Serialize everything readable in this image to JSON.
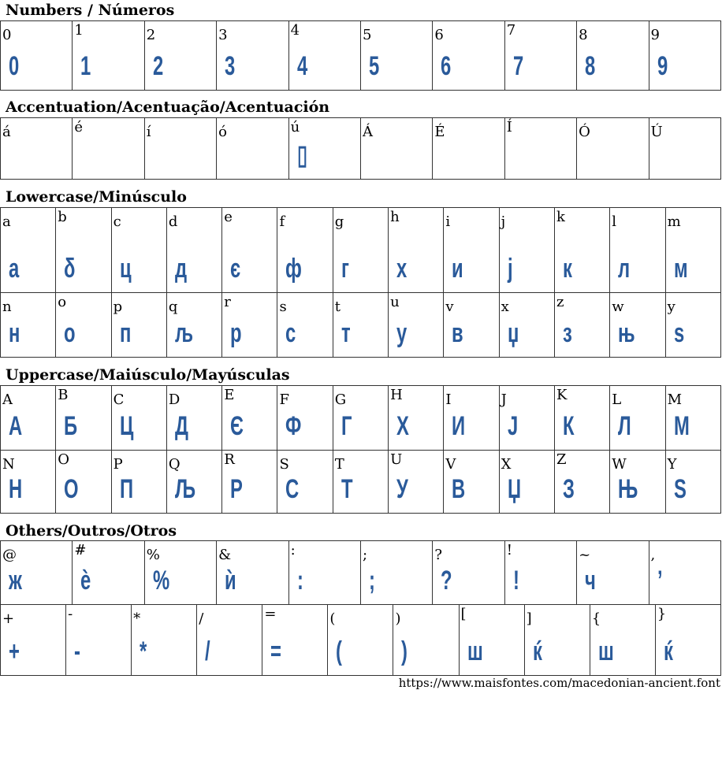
{
  "sections": [
    {
      "title": "Numbers / Números",
      "rows": [
        [
          [
            "0",
            "0"
          ],
          [
            "1",
            "1"
          ],
          [
            "2",
            "2"
          ],
          [
            "3",
            "3"
          ],
          [
            "4",
            "4"
          ],
          [
            "5",
            "5"
          ],
          [
            "6",
            "6"
          ],
          [
            "7",
            "7"
          ],
          [
            "8",
            "8"
          ],
          [
            "9",
            "9"
          ]
        ]
      ]
    },
    {
      "title": "Accentuation/Acentuação/Acentuación",
      "rows": [
        [
          [
            "á",
            ""
          ],
          [
            "é",
            ""
          ],
          [
            "í",
            ""
          ],
          [
            "ó",
            ""
          ],
          [
            "ú",
            "▯"
          ],
          [
            "Á",
            ""
          ],
          [
            "É",
            ""
          ],
          [
            "Í",
            ""
          ],
          [
            "Ó",
            ""
          ],
          [
            "Ú",
            ""
          ]
        ]
      ]
    },
    {
      "title": "Lowercase/Minúsculo",
      "rows": [
        [
          [
            "a",
            "а"
          ],
          [
            "b",
            "δ"
          ],
          [
            "c",
            "ц"
          ],
          [
            "d",
            "д"
          ],
          [
            "e",
            "є"
          ],
          [
            "f",
            "ф"
          ],
          [
            "g",
            "г"
          ],
          [
            "h",
            "х"
          ],
          [
            "i",
            "и"
          ],
          [
            "j",
            "ј"
          ],
          [
            "k",
            "к"
          ],
          [
            "l",
            "л"
          ],
          [
            "m",
            "м"
          ]
        ],
        [
          [
            "n",
            "н"
          ],
          [
            "o",
            "о"
          ],
          [
            "p",
            "п"
          ],
          [
            "q",
            "љ"
          ],
          [
            "r",
            "р"
          ],
          [
            "s",
            "с"
          ],
          [
            "t",
            "т"
          ],
          [
            "u",
            "у"
          ],
          [
            "v",
            "в"
          ],
          [
            "x",
            "џ"
          ],
          [
            "z",
            "з"
          ],
          [
            "w",
            "њ"
          ],
          [
            "y",
            "ѕ"
          ]
        ]
      ]
    },
    {
      "title": "Uppercase/Maiúsculo/Mayúsculas",
      "rows": [
        [
          [
            "A",
            "А"
          ],
          [
            "B",
            "Б"
          ],
          [
            "C",
            "Ц"
          ],
          [
            "D",
            "Д"
          ],
          [
            "E",
            "Є"
          ],
          [
            "F",
            "Ф"
          ],
          [
            "G",
            "Г"
          ],
          [
            "H",
            "Х"
          ],
          [
            "I",
            "И"
          ],
          [
            "J",
            "Ј"
          ],
          [
            "K",
            "К"
          ],
          [
            "L",
            "Л"
          ],
          [
            "M",
            "М"
          ]
        ],
        [
          [
            "N",
            "Н"
          ],
          [
            "O",
            "О"
          ],
          [
            "P",
            "П"
          ],
          [
            "Q",
            "Љ"
          ],
          [
            "R",
            "Р"
          ],
          [
            "S",
            "С"
          ],
          [
            "T",
            "Т"
          ],
          [
            "U",
            "У"
          ],
          [
            "V",
            "В"
          ],
          [
            "X",
            "Џ"
          ],
          [
            "Z",
            "З"
          ],
          [
            "W",
            "Њ"
          ],
          [
            "Y",
            "Ѕ"
          ]
        ]
      ]
    },
    {
      "title": "Others/Outros/Otros",
      "rows": [
        [
          [
            "@",
            "ж"
          ],
          [
            "#",
            "ѐ"
          ],
          [
            "%",
            "%"
          ],
          [
            "&",
            "ѝ"
          ],
          [
            ":",
            ":"
          ],
          [
            ";",
            ";"
          ],
          [
            "?",
            "?"
          ],
          [
            "!",
            "!"
          ],
          [
            "~",
            "ч"
          ],
          [
            ",",
            "’"
          ]
        ],
        [
          [
            "+",
            "+"
          ],
          [
            "-",
            "-"
          ],
          [
            "*",
            "*"
          ],
          [
            "/",
            "/"
          ],
          [
            "=",
            "="
          ],
          [
            "(",
            "("
          ],
          [
            ")",
            ")"
          ],
          [
            "[",
            "ш"
          ],
          [
            "]",
            "ќ"
          ],
          [
            "{",
            "ш"
          ],
          [
            "}",
            "ќ"
          ]
        ]
      ]
    }
  ],
  "footer_url": "https://www.maisfontes.com/macedonian-ancient.font",
  "colors": {
    "glyph": "#2a5a9a",
    "border": "#333333"
  }
}
